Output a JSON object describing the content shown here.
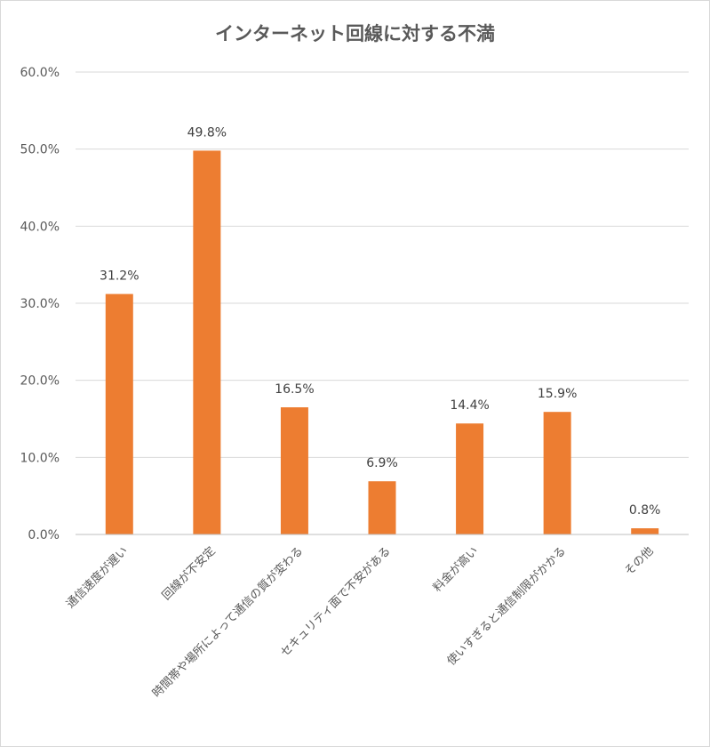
{
  "chart_data": {
    "type": "bar",
    "title": "インターネット回線に対する不満",
    "categories": [
      "通信速度が遅い",
      "回線が不安定",
      "時間帯や場所によって通信の質が変わる",
      "セキュリティ面で不安がある",
      "料金が高い",
      "使いすぎると通信制限がかかる",
      "その他"
    ],
    "values": [
      31.2,
      49.8,
      16.5,
      6.9,
      14.4,
      15.9,
      0.8
    ],
    "data_labels": [
      "31.2%",
      "49.8%",
      "16.5%",
      "6.9%",
      "14.4%",
      "15.9%",
      "0.8%"
    ],
    "yticks": [
      "0.0%",
      "10.0%",
      "20.0%",
      "30.0%",
      "40.0%",
      "50.0%",
      "60.0%"
    ],
    "ylim": [
      0,
      60
    ],
    "xlabel": "",
    "ylabel": "",
    "grid": true,
    "legend": "none",
    "colors": {
      "bar": "#ED7D31",
      "grid": "#d9d9d9",
      "text": "#595959"
    }
  }
}
